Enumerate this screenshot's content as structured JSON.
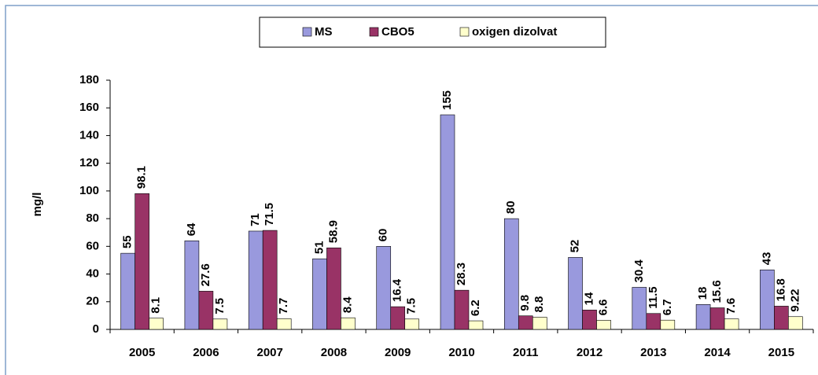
{
  "chart_data": {
    "type": "bar",
    "y_label": "mg/l",
    "categories": [
      "2005",
      "2006",
      "2007",
      "2008",
      "2009",
      "2010",
      "2011",
      "2012",
      "2013",
      "2014",
      "2015"
    ],
    "series": [
      {
        "name": "MS",
        "color": "#9999dd",
        "values": [
          55,
          64,
          71,
          51,
          60,
          155,
          80,
          52,
          30.4,
          18,
          43
        ]
      },
      {
        "name": "CBO5",
        "color": "#993366",
        "values": [
          98.1,
          27.6,
          71.5,
          58.9,
          16.4,
          28.3,
          9.8,
          14,
          11.5,
          15.6,
          16.8
        ]
      },
      {
        "name": "oxigen dizolvat",
        "color": "#ffffcc",
        "values": [
          8.1,
          7.5,
          7.7,
          8.4,
          7.5,
          6.2,
          8.8,
          6.6,
          6.7,
          7.6,
          9.22
        ]
      }
    ],
    "ylim": [
      0,
      180
    ],
    "yticks": [
      0,
      20,
      40,
      60,
      80,
      100,
      120,
      140,
      160,
      180
    ],
    "grid": false,
    "legend": "top"
  }
}
